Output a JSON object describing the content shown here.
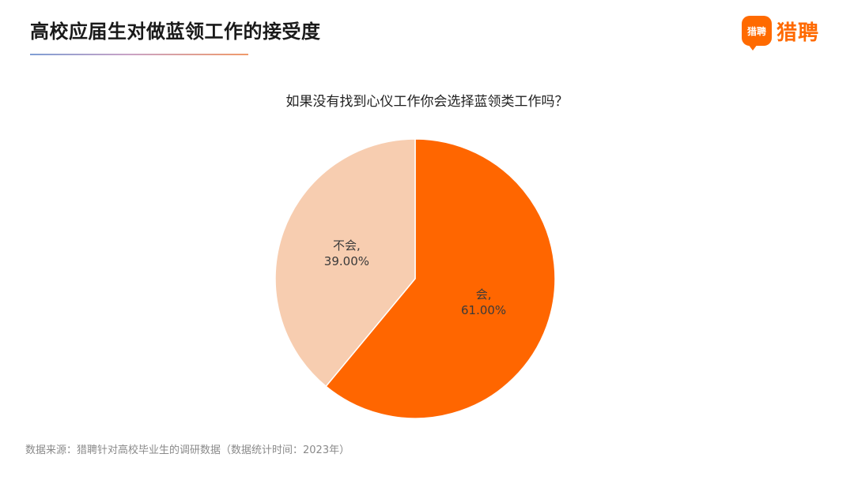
{
  "header": {
    "title": "高校应届生对做蓝领工作的接受度",
    "logo_icon_text": "猎聘",
    "logo_text": "猎聘"
  },
  "chart_data": {
    "type": "pie",
    "title": "如果没有找到心仪工作你会选择蓝领类工作吗？",
    "slices": [
      {
        "label": "会,",
        "value": 61.0,
        "display": "61.00%",
        "color": "#ff6600"
      },
      {
        "label": "不会,",
        "value": 39.0,
        "display": "39.00%",
        "color": "#f7cdb0"
      }
    ],
    "start": "top, clockwise",
    "legend": "none"
  },
  "footer": {
    "source": "数据来源：猎聘针对高校毕业生的调研数据（数据统计时间：2023年）"
  }
}
